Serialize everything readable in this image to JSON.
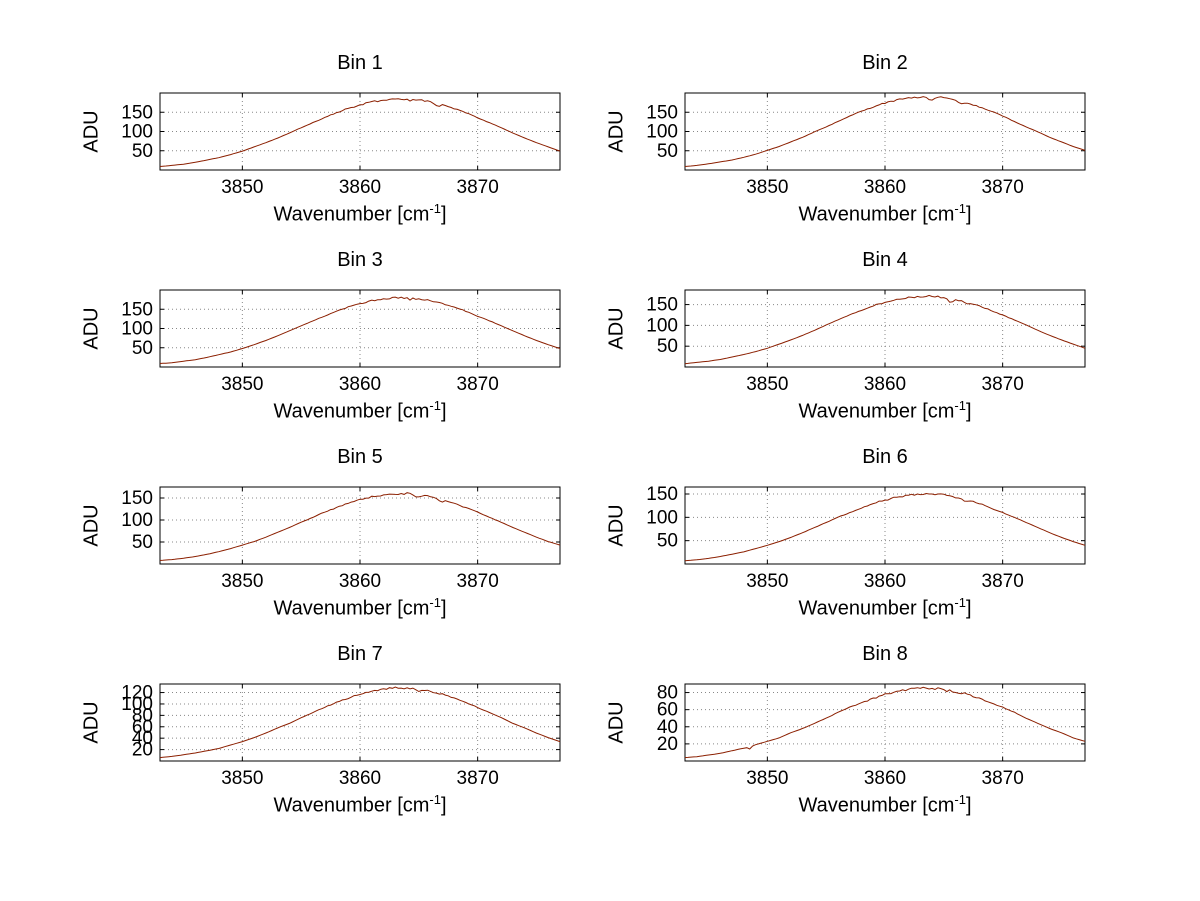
{
  "figure": {
    "background": "#ffffff",
    "text_color": "#000000"
  },
  "axis_labels": {
    "x_main": "Wavenumber [cm",
    "x_sup": "-1",
    "x_tail": "]",
    "y": "ADU"
  },
  "chart_data": {
    "type": "line",
    "layout": "4 rows x 2 columns of subplots",
    "line_color": "#8b1f00",
    "grid": "dotted",
    "grid_color": "#888888",
    "xlabel": "Wavenumber [cm^-1]",
    "ylabel": "ADU",
    "xlim": [
      3843,
      3877
    ],
    "xticks": [
      3850,
      3860,
      3870
    ],
    "x_start": 3843,
    "x_step": 1,
    "bins": [
      {
        "title": "Bin 1",
        "ylim": [
          0,
          200
        ],
        "yticks": [
          50,
          100,
          150
        ],
        "noise_amp": 2.4,
        "dips": [
          {
            "x": 3866.6,
            "w": 0.4,
            "d": 9
          },
          {
            "x": 3864.3,
            "w": 0.3,
            "d": 5
          }
        ],
        "values": [
          9,
          12,
          15,
          20,
          26,
          32,
          40,
          49,
          60,
          71,
          83,
          96,
          110,
          123,
          136,
          149,
          160,
          169,
          177,
          182,
          185,
          185,
          182,
          177,
          169,
          160,
          149,
          136,
          123,
          110,
          96,
          83,
          71,
          60,
          49
        ]
      },
      {
        "title": "Bin 2",
        "ylim": [
          0,
          200
        ],
        "yticks": [
          50,
          100,
          150
        ],
        "noise_amp": 2.4,
        "dips": [
          {
            "x": 3863.9,
            "w": 0.4,
            "d": 14
          },
          {
            "x": 3866.5,
            "w": 0.4,
            "d": 7
          }
        ],
        "values": [
          9,
          12,
          16,
          21,
          26,
          33,
          41,
          51,
          61,
          73,
          85,
          99,
          112,
          126,
          140,
          153,
          164,
          174,
          182,
          187,
          190,
          190,
          187,
          182,
          174,
          164,
          153,
          140,
          126,
          112,
          99,
          85,
          73,
          61,
          51
        ]
      },
      {
        "title": "Bin 3",
        "ylim": [
          0,
          200
        ],
        "yticks": [
          50,
          100,
          150
        ],
        "noise_amp": 2.2,
        "dips": [
          {
            "x": 3864.2,
            "w": 0.3,
            "d": 6
          }
        ],
        "values": [
          9,
          11,
          15,
          19,
          25,
          32,
          39,
          48,
          58,
          69,
          81,
          94,
          107,
          120,
          132,
          145,
          156,
          165,
          172,
          177,
          180,
          180,
          177,
          172,
          165,
          156,
          145,
          132,
          120,
          107,
          94,
          81,
          69,
          58,
          48
        ]
      },
      {
        "title": "Bin 4",
        "ylim": [
          0,
          185
        ],
        "yticks": [
          50,
          100,
          150
        ],
        "noise_amp": 2.2,
        "dips": [
          {
            "x": 3865.6,
            "w": 0.4,
            "d": 10
          },
          {
            "x": 3867.0,
            "w": 0.3,
            "d": 6
          }
        ],
        "values": [
          8,
          11,
          14,
          18,
          24,
          30,
          37,
          45,
          55,
          65,
          76,
          88,
          101,
          113,
          125,
          136,
          147,
          156,
          162,
          167,
          170,
          170,
          167,
          162,
          156,
          147,
          136,
          125,
          113,
          101,
          88,
          76,
          65,
          55,
          45
        ]
      },
      {
        "title": "Bin 5",
        "ylim": [
          0,
          175
        ],
        "yticks": [
          50,
          100,
          150
        ],
        "noise_amp": 2.2,
        "dips": [
          {
            "x": 3864.8,
            "w": 0.4,
            "d": 8
          },
          {
            "x": 3866.9,
            "w": 0.4,
            "d": 6
          }
        ],
        "values": [
          8,
          10,
          13,
          17,
          22,
          28,
          35,
          43,
          51,
          61,
          72,
          83,
          95,
          106,
          118,
          128,
          138,
          146,
          153,
          157,
          160,
          160,
          157,
          153,
          146,
          138,
          128,
          118,
          106,
          95,
          83,
          72,
          61,
          51,
          43
        ]
      },
      {
        "title": "Bin 6",
        "ylim": [
          0,
          165
        ],
        "yticks": [
          50,
          100,
          150
        ],
        "noise_amp": 2.2,
        "dips": [
          {
            "x": 3866.8,
            "w": 0.4,
            "d": 6
          }
        ],
        "values": [
          7,
          9,
          12,
          16,
          21,
          26,
          33,
          40,
          48,
          57,
          67,
          78,
          89,
          100,
          110,
          120,
          130,
          137,
          143,
          148,
          150,
          150,
          148,
          143,
          137,
          130,
          120,
          110,
          100,
          89,
          78,
          67,
          57,
          48,
          40
        ]
      },
      {
        "title": "Bin 7",
        "ylim": [
          0,
          135
        ],
        "yticks": [
          20,
          40,
          60,
          80,
          100,
          120
        ],
        "noise_amp": 1.8,
        "dips": [
          {
            "x": 3865.0,
            "w": 0.3,
            "d": 4
          }
        ],
        "values": [
          6,
          8,
          11,
          14,
          18,
          22,
          28,
          34,
          41,
          49,
          58,
          66,
          76,
          85,
          94,
          103,
          110,
          117,
          122,
          126,
          128,
          128,
          126,
          122,
          117,
          110,
          103,
          94,
          85,
          76,
          66,
          58,
          49,
          41,
          34
        ]
      },
      {
        "title": "Bin 8",
        "ylim": [
          0,
          90
        ],
        "yticks": [
          20,
          40,
          60,
          80
        ],
        "noise_amp": 1.4,
        "dips": [
          {
            "x": 3865.2,
            "w": 0.3,
            "d": 3
          },
          {
            "x": 3848.5,
            "w": 0.3,
            "d": 3
          }
        ],
        "values": [
          4,
          5,
          7,
          9,
          12,
          15,
          19,
          23,
          27,
          33,
          38,
          44,
          50,
          57,
          63,
          68,
          73,
          78,
          81,
          84,
          85,
          85,
          84,
          81,
          78,
          73,
          68,
          63,
          57,
          50,
          44,
          38,
          33,
          27,
          23
        ]
      }
    ]
  }
}
